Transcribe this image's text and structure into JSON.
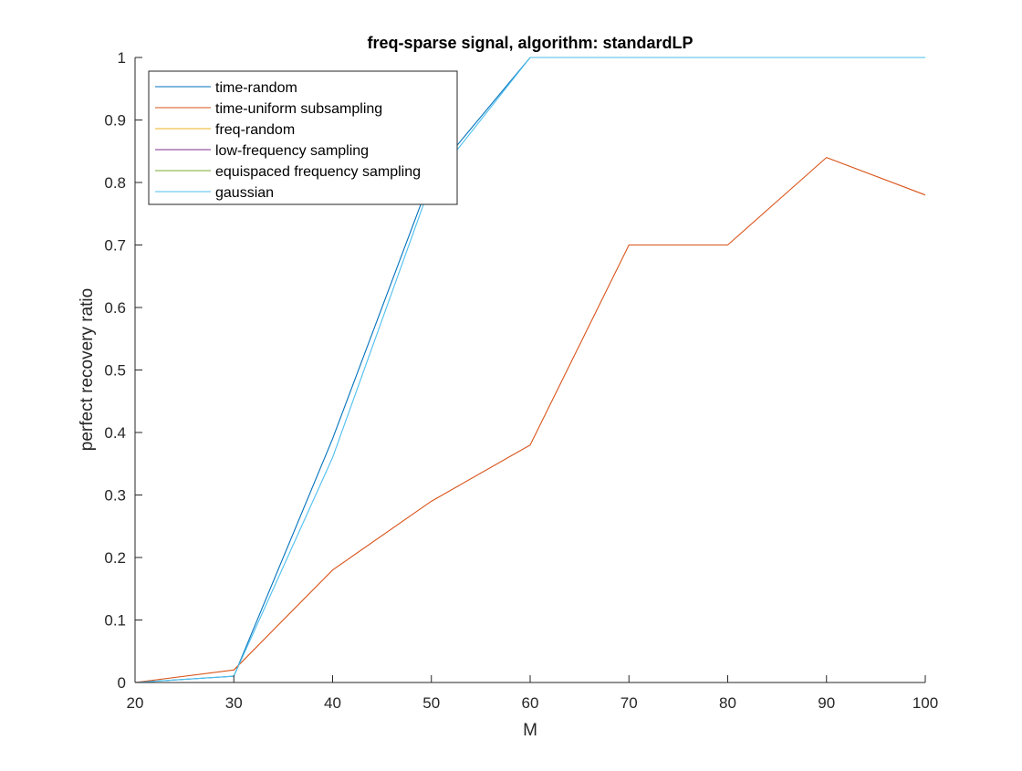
{
  "chart_data": {
    "type": "line",
    "title": "freq-sparse signal, algorithm: standardLP",
    "xlabel": "M",
    "ylabel": "perfect recovery ratio",
    "xlim": [
      20,
      100
    ],
    "ylim": [
      0,
      1
    ],
    "x": [
      20,
      30,
      40,
      50,
      60,
      70,
      80,
      90,
      100
    ],
    "xticks": [
      20,
      30,
      40,
      50,
      60,
      70,
      80,
      90,
      100
    ],
    "yticks": [
      0,
      0.1,
      0.2,
      0.3,
      0.4,
      0.5,
      0.6,
      0.7,
      0.8,
      0.9,
      1
    ],
    "ytick_labels": [
      "0",
      "0.1",
      "0.2",
      "0.3",
      "0.4",
      "0.5",
      "0.6",
      "0.7",
      "0.8",
      "0.9",
      "1"
    ],
    "grid": false,
    "legend_position": "top-left",
    "series": [
      {
        "name": "time-random",
        "color": "#0072BD",
        "values": [
          0,
          0.01,
          0.39,
          0.81,
          1,
          1,
          1,
          1,
          1
        ]
      },
      {
        "name": "time-uniform subsampling",
        "color": "#D95319",
        "values": [
          0,
          0.02,
          0.18,
          0.29,
          0.38,
          0.7,
          0.7,
          0.84,
          0.78
        ]
      },
      {
        "name": "freq-random",
        "color": "#EDB120",
        "values": [
          0,
          0,
          0,
          0,
          0,
          0,
          0,
          0,
          0
        ]
      },
      {
        "name": "low-frequency sampling",
        "color": "#7E2F8E",
        "values": [
          0,
          0,
          0,
          0,
          0,
          0,
          0,
          0,
          0
        ]
      },
      {
        "name": "equispaced frequency sampling",
        "color": "#77AC30",
        "values": [
          0,
          0,
          0,
          0,
          0,
          0,
          0,
          0,
          0
        ]
      },
      {
        "name": "gaussian",
        "color": "#4DBEEE",
        "values": [
          0,
          0.01,
          0.36,
          0.8,
          1,
          1,
          1,
          1,
          1
        ]
      }
    ]
  }
}
